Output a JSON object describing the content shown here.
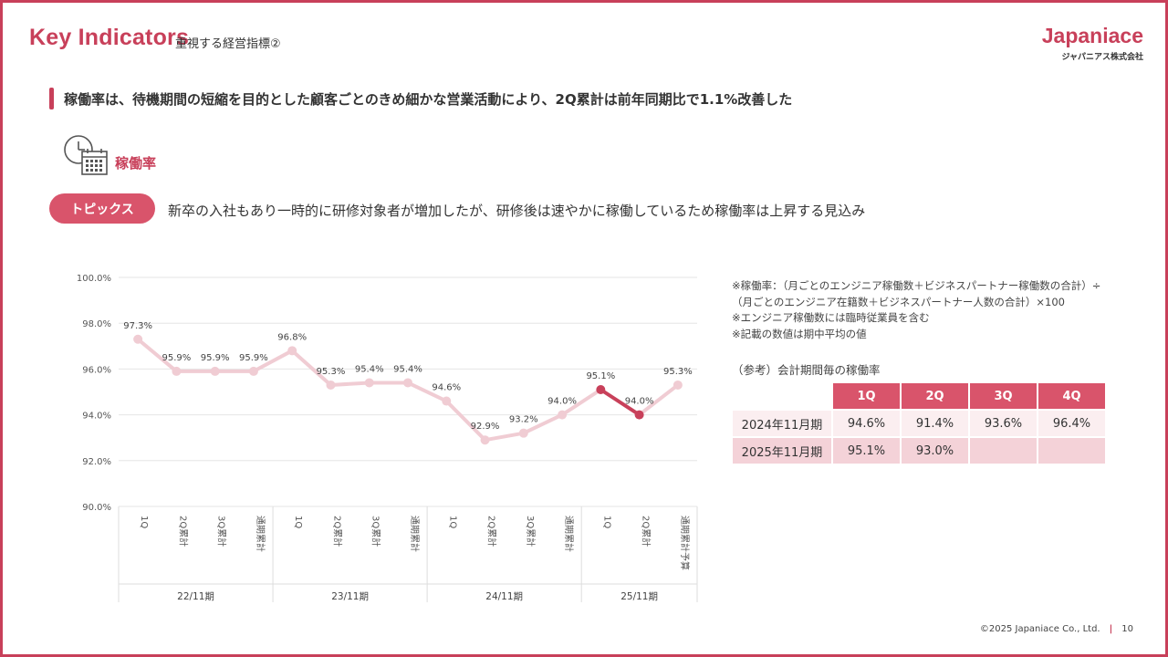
{
  "header": {
    "title": "Key Indicators",
    "subtitle": "重視する経営指標②",
    "logo_main": "Japaniace",
    "logo_sub": "ジャパニアス株式会社"
  },
  "headline": "稼働率は、待機期間の短縮を目的とした顧客ごとのきめ細かな営業活動により、2Q累計は前年同期比で1.1%改善した",
  "kpi": {
    "label": "稼働率",
    "icon": "clock-calendar-icon"
  },
  "topics": {
    "label": "トピックス",
    "text": "新卒の入社もあり一時的に研修対象者が増加したが、研修後は速やかに稼働しているため稼働率は上昇する見込み"
  },
  "notes": [
    "※稼働率：（月ごとのエンジニア稼働数＋ビジネスパートナー稼働数の合計）÷",
    "（月ごとのエンジニア在籍数＋ビジネスパートナー人数の合計）×100",
    "※エンジニア稼働数には臨時従業員を含む",
    "※記載の数値は期中平均の値"
  ],
  "reference": {
    "title": "（参考）会計期間毎の稼働率",
    "columns": [
      "1Q",
      "2Q",
      "3Q",
      "4Q"
    ],
    "rows": [
      {
        "label": "2024年11月期",
        "values": [
          "94.6%",
          "91.4%",
          "93.6%",
          "96.4%"
        ]
      },
      {
        "label": "2025年11月期",
        "values": [
          "95.1%",
          "93.0%",
          "",
          ""
        ]
      }
    ]
  },
  "chart_data": {
    "type": "line",
    "ylim": [
      90,
      100
    ],
    "yticks": [
      "90.0%",
      "92.0%",
      "94.0%",
      "96.0%",
      "98.0%",
      "100.0%"
    ],
    "groups": [
      {
        "label": "22/11期",
        "categories": [
          "1Q",
          "2Q累計",
          "3Q累計",
          "通期累計"
        ],
        "values": [
          97.3,
          95.9,
          95.9,
          95.9
        ],
        "labels": [
          "97.3%",
          "95.9%",
          "95.9%",
          "95.9%"
        ]
      },
      {
        "label": "23/11期",
        "categories": [
          "1Q",
          "2Q累計",
          "3Q累計",
          "通期累計"
        ],
        "values": [
          96.8,
          95.3,
          95.4,
          95.4
        ],
        "labels": [
          "96.8%",
          "95.3%",
          "95.4%",
          "95.4%"
        ]
      },
      {
        "label": "24/11期",
        "categories": [
          "1Q",
          "2Q累計",
          "3Q累計",
          "通期累計"
        ],
        "values": [
          94.6,
          92.9,
          93.2,
          94.0
        ],
        "labels": [
          "94.6%",
          "92.9%",
          "93.2%",
          "94.0%"
        ]
      },
      {
        "label": "25/11期",
        "categories": [
          "1Q",
          "2Q累計",
          "通期累計予算"
        ],
        "values": [
          95.1,
          94.0,
          95.3
        ],
        "labels": [
          "95.1%",
          "94.0%",
          "95.3%"
        ]
      }
    ],
    "highlight": {
      "from_index": 12,
      "to_index": 13
    },
    "colors": {
      "line": "#f0ccd3",
      "highlight": "#c8405a",
      "grid": "#e6e6e6"
    }
  },
  "footer": {
    "copyright": "©2025 Japaniace Co., Ltd.",
    "page": "10"
  }
}
